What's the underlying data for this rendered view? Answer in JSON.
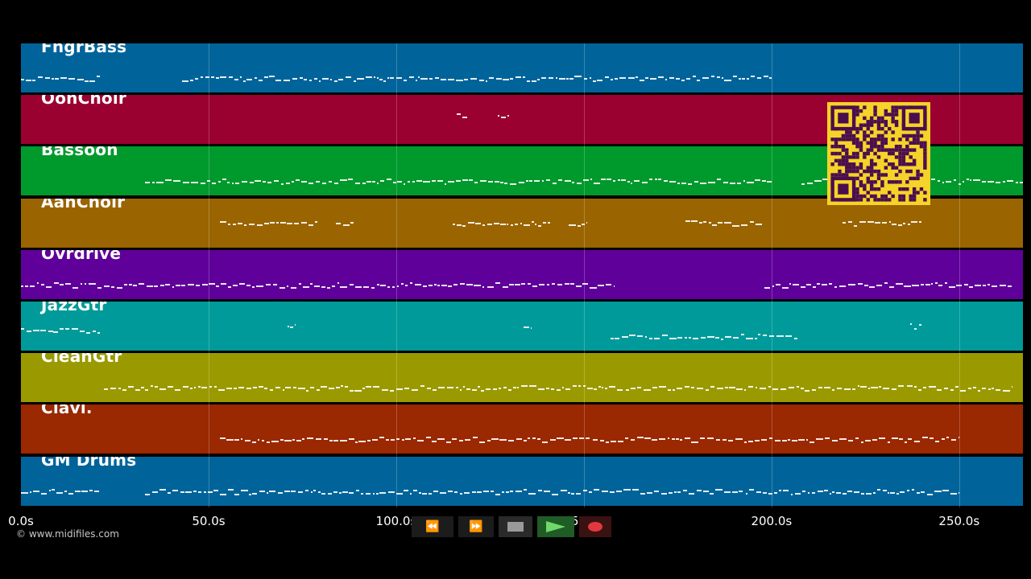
{
  "tracks": [
    {
      "name": "FngrBass",
      "color": "#00649a"
    },
    {
      "name": "OohChoir",
      "color": "#9a0030"
    },
    {
      "name": "Bassoon",
      "color": "#00992c"
    },
    {
      "name": "AahChoir",
      "color": "#9a6400"
    },
    {
      "name": "Ovrdrive",
      "color": "#5f009a"
    },
    {
      "name": "JazzGtr",
      "color": "#009a9a"
    },
    {
      "name": "CleanGtr",
      "color": "#9a9a00"
    },
    {
      "name": "Clavi.",
      "color": "#9a2800"
    },
    {
      "name": "GM Drums",
      "color": "#00649a"
    }
  ],
  "note_segments": [
    [
      [
        0,
        21,
        "y"
      ],
      [
        43,
        200,
        "y"
      ]
    ],
    [
      [
        116,
        119,
        "a"
      ],
      [
        127,
        130,
        "a"
      ]
    ],
    [
      [
        33,
        200,
        "y"
      ],
      [
        208,
        267,
        "y"
      ]
    ],
    [
      [
        53,
        79,
        "c"
      ],
      [
        84,
        89,
        "c"
      ],
      [
        115,
        141,
        "c"
      ],
      [
        146,
        151,
        "c"
      ],
      [
        177,
        198,
        "c"
      ],
      [
        219,
        240,
        "c"
      ]
    ],
    [
      [
        0,
        158,
        "y"
      ],
      [
        198,
        264,
        "y"
      ]
    ],
    [
      [
        0,
        21,
        "b"
      ],
      [
        71,
        73,
        "c"
      ],
      [
        134,
        136,
        "c"
      ],
      [
        157,
        207,
        "y"
      ],
      [
        237,
        240,
        "c"
      ]
    ],
    [
      [
        22,
        264,
        "y"
      ]
    ],
    [
      [
        53,
        250,
        "y"
      ]
    ],
    [
      [
        0,
        21,
        "y"
      ],
      [
        33,
        250,
        "y"
      ]
    ]
  ],
  "time_axis": {
    "ticks": [
      "0.0s",
      "50.0s",
      "100.0s",
      "150.0s",
      "200.0s",
      "250.0s"
    ],
    "tick_seconds": [
      0,
      50,
      100,
      150,
      200,
      250
    ],
    "max_seconds": 267
  },
  "copyright": "© www.midifiles.com",
  "qr_color": "#f5d328",
  "transport": {
    "rewind": "⏪",
    "fast_forward": "⏩",
    "stop": "stop",
    "play": "play",
    "record": "record"
  }
}
